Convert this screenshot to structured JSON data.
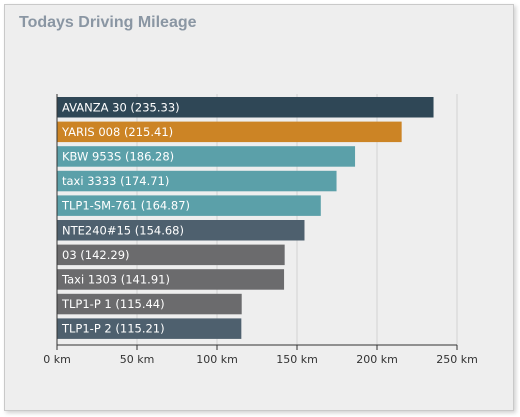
{
  "title": "Todays Driving Mileage",
  "chart_data": {
    "type": "bar",
    "orientation": "horizontal",
    "title": "Todays Driving Mileage",
    "categories": [
      "AVANZA 30 (235.33)",
      "YARIS 008 (215.41)",
      "KBW 953S (186.28)",
      "taxi 3333 (174.71)",
      "TLP1-SM-761 (164.87)",
      "NTE240#15 (154.68)",
      "03 (142.29)",
      "Taxi 1303 (141.91)",
      "TLP1-P 1 (115.44)",
      "TLP1-P 2 (115.21)"
    ],
    "values": [
      235.33,
      215.41,
      186.28,
      174.71,
      164.87,
      154.68,
      142.29,
      141.91,
      115.44,
      115.21
    ],
    "colors": [
      "#2f4756",
      "#cc8425",
      "#5ba0a9",
      "#5ba0a9",
      "#5ba0a9",
      "#4e606e",
      "#6b6b6d",
      "#6b6b6d",
      "#6b6b6d",
      "#4e606e"
    ],
    "xticks": [
      "0 km",
      "50 km",
      "100 km",
      "150 km",
      "200 km",
      "250 km"
    ],
    "xtick_values": [
      0,
      50,
      100,
      150,
      200,
      250
    ],
    "xlim": [
      0,
      250
    ],
    "grid": true
  }
}
